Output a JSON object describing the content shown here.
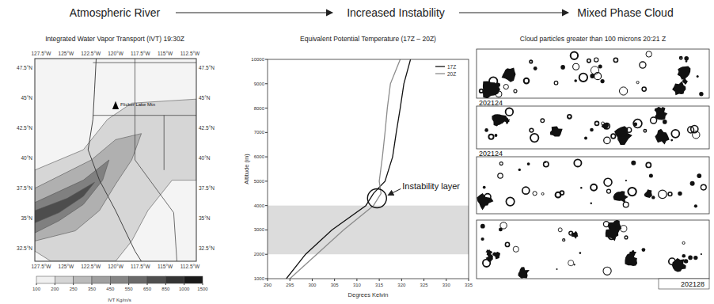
{
  "flow": [
    "Atmospheric River",
    "Increased Instability",
    "Mixed Phase Cloud"
  ],
  "map": {
    "title": "Integrated Water Vapor Transport (IVT) 19:30Z",
    "lon_labels": [
      "127.5°W",
      "125°W",
      "122.5°W",
      "120°W",
      "117.5°W",
      "115°W",
      "112.5°W"
    ],
    "lat_labels": [
      "47.5°N",
      "45°N",
      "42.5°N",
      "40°N",
      "37.5°N",
      "35°N",
      "32.5°N"
    ],
    "place_label": "Flicker Lake Mtn",
    "colorbar": {
      "ticks": [
        100,
        200,
        250,
        350,
        450,
        550,
        650,
        850,
        1000,
        1500
      ],
      "label": "IVT Kg/m/s"
    }
  },
  "chart_data": {
    "type": "line",
    "title": "Equivalent Potential Temperature (17Z – 20Z)",
    "x_label": "Degrees Kelvin",
    "y_label": "Altitude (m)",
    "xlim": [
      290,
      335
    ],
    "xticks": [
      290,
      295,
      300,
      305,
      310,
      315,
      320,
      325,
      330,
      335
    ],
    "ylim": [
      1000,
      10000
    ],
    "yticks": [
      1000,
      2000,
      3000,
      4000,
      5000,
      6000,
      7000,
      8000,
      9000,
      10000
    ],
    "legend": "upper right",
    "band": {
      "ymin": 2000,
      "ymax": 4000
    },
    "annotations": [
      {
        "text": "Instability layer",
        "x": 314.5,
        "y": 4300
      }
    ],
    "series": [
      {
        "name": "17Z",
        "color": "#111111",
        "x": [
          294.2,
          298.5,
          304.4,
          312,
          313.7,
          316.3,
          318,
          318.8,
          319.7,
          320.5,
          322
        ],
        "values": [
          1000,
          2000,
          3000,
          4000,
          4500,
          5000,
          6000,
          7000,
          8000,
          9000,
          10000
        ]
      },
      {
        "name": "20Z",
        "color": "#8c8c8c",
        "x": [
          295,
          301,
          307,
          313.7,
          315.4,
          315,
          315.7,
          316.3,
          316.8,
          317.5,
          319.7
        ],
        "values": [
          1000,
          2000,
          3000,
          4000,
          4500,
          5000,
          6000,
          7000,
          8000,
          9000,
          10000
        ]
      }
    ]
  },
  "particles": {
    "title": "Cloud particles greater than 100 microns 20:21 Z",
    "strips": [
      "202124",
      "202124",
      null,
      "202128"
    ]
  }
}
